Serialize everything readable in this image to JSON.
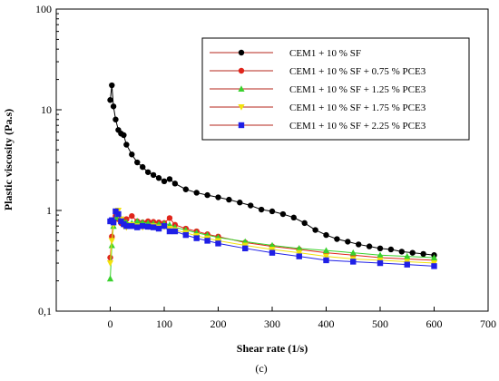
{
  "chart_data": {
    "type": "line",
    "title": "",
    "xlabel": "Shear rate (1/s)",
    "ylabel": "Plastic viscosity (Pa.s)",
    "panel_label": "(c)",
    "xlim": [
      -100,
      700
    ],
    "ylim": [
      0.1,
      100
    ],
    "yscale": "log",
    "xticks": [
      0,
      100,
      200,
      300,
      400,
      500,
      600,
      700
    ],
    "xtick_labels": [
      "0",
      "100",
      "200",
      "300",
      "400",
      "500",
      "600",
      "700"
    ],
    "yticks": [
      0.1,
      1,
      10,
      100
    ],
    "ytick_labels": [
      "0,1",
      "1",
      "10",
      "100"
    ],
    "grid": false,
    "legend_position": "top-right",
    "series": [
      {
        "name": "CEM1 + 10 % SF",
        "color": "#000000",
        "marker": "circle",
        "x": [
          0,
          3,
          6,
          10,
          15,
          20,
          25,
          30,
          40,
          50,
          60,
          70,
          80,
          90,
          100,
          110,
          120,
          140,
          160,
          180,
          200,
          220,
          240,
          260,
          280,
          300,
          320,
          340,
          360,
          380,
          400,
          420,
          440,
          460,
          480,
          500,
          520,
          540,
          560,
          580,
          600
        ],
        "y": [
          12.5,
          17.5,
          10.8,
          8.0,
          6.3,
          5.8,
          5.6,
          4.5,
          3.6,
          3.0,
          2.7,
          2.4,
          2.25,
          2.1,
          1.95,
          2.05,
          1.85,
          1.62,
          1.5,
          1.42,
          1.35,
          1.28,
          1.2,
          1.12,
          1.02,
          0.98,
          0.92,
          0.85,
          0.75,
          0.64,
          0.57,
          0.52,
          0.49,
          0.46,
          0.44,
          0.42,
          0.41,
          0.39,
          0.38,
          0.37,
          0.36
        ]
      },
      {
        "name": "CEM1 + 10 % SF + 0.75 % PCE3",
        "color": "#e0251b",
        "marker": "circle",
        "x": [
          0,
          3,
          6,
          10,
          15,
          20,
          25,
          30,
          40,
          50,
          60,
          70,
          80,
          90,
          100,
          110,
          120,
          140,
          160,
          180,
          200,
          250,
          300,
          350,
          400,
          450,
          500,
          550,
          600
        ],
        "y": [
          0.34,
          0.55,
          0.78,
          0.88,
          0.82,
          0.75,
          0.74,
          0.82,
          0.88,
          0.78,
          0.76,
          0.78,
          0.77,
          0.76,
          0.75,
          0.84,
          0.72,
          0.66,
          0.62,
          0.58,
          0.55,
          0.48,
          0.44,
          0.41,
          0.38,
          0.36,
          0.34,
          0.33,
          0.32
        ]
      },
      {
        "name": "CEM1 + 10 % SF + 1.25 % PCE3",
        "color": "#39d12c",
        "marker": "triangle",
        "x": [
          0,
          3,
          6,
          10,
          15,
          20,
          25,
          30,
          40,
          50,
          60,
          70,
          80,
          90,
          100,
          110,
          120,
          140,
          160,
          180,
          200,
          250,
          300,
          350,
          400,
          450,
          500,
          550,
          600
        ],
        "y": [
          0.21,
          0.45,
          0.7,
          0.85,
          0.9,
          0.8,
          0.78,
          0.76,
          0.75,
          0.78,
          0.76,
          0.75,
          0.74,
          0.73,
          0.74,
          0.72,
          0.68,
          0.64,
          0.6,
          0.57,
          0.54,
          0.49,
          0.45,
          0.42,
          0.4,
          0.38,
          0.36,
          0.35,
          0.34
        ]
      },
      {
        "name": "CEM1 + 10 % SF + 1.75 % PCE3",
        "color": "#f2e20c",
        "marker": "triangle-down",
        "x": [
          0,
          3,
          6,
          10,
          15,
          20,
          25,
          30,
          40,
          50,
          60,
          70,
          80,
          90,
          100,
          110,
          120,
          140,
          160,
          180,
          200,
          250,
          300,
          350,
          400,
          450,
          500,
          550,
          600
        ],
        "y": [
          0.3,
          0.5,
          0.72,
          0.95,
          1.0,
          0.82,
          0.7,
          0.68,
          0.72,
          0.7,
          0.68,
          0.69,
          0.7,
          0.68,
          0.69,
          0.66,
          0.64,
          0.6,
          0.56,
          0.53,
          0.5,
          0.45,
          0.41,
          0.38,
          0.35,
          0.33,
          0.32,
          0.31,
          0.3
        ]
      },
      {
        "name": "CEM1 + 10 % SF + 2.25 % PCE3",
        "color": "#1f1fe6",
        "marker": "square",
        "x": [
          0,
          3,
          6,
          10,
          15,
          20,
          25,
          30,
          40,
          50,
          60,
          70,
          80,
          90,
          100,
          110,
          120,
          140,
          160,
          180,
          200,
          250,
          300,
          350,
          400,
          450,
          500,
          550,
          600
        ],
        "y": [
          0.78,
          0.8,
          0.76,
          0.98,
          0.92,
          0.78,
          0.73,
          0.7,
          0.7,
          0.68,
          0.7,
          0.69,
          0.68,
          0.66,
          0.7,
          0.62,
          0.62,
          0.57,
          0.53,
          0.5,
          0.47,
          0.42,
          0.38,
          0.35,
          0.32,
          0.31,
          0.3,
          0.29,
          0.28
        ]
      }
    ]
  }
}
